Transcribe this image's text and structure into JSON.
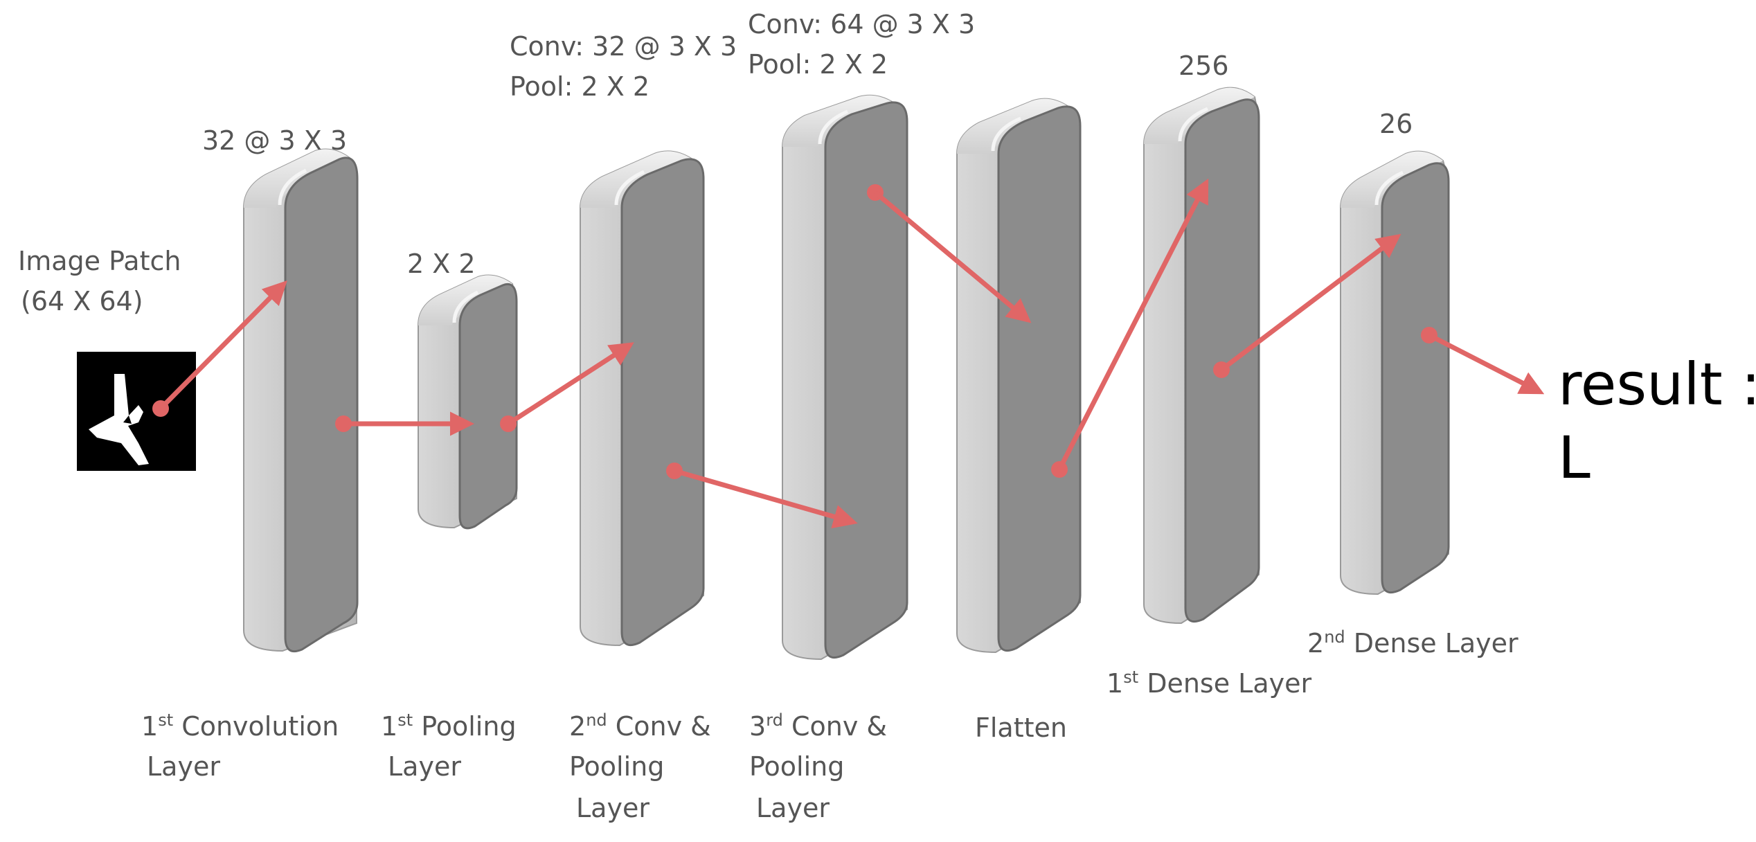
{
  "input": {
    "label_line1": "Image Patch",
    "label_line2": "(64 X 64)"
  },
  "layers": [
    {
      "id": "conv1",
      "top_label": "32 @ 3 X 3",
      "name": [
        {
          "main": "1",
          "sup": "st",
          "rest": " Convolution"
        },
        {
          "main": "Layer"
        }
      ]
    },
    {
      "id": "pool1",
      "top_label": "2 X 2",
      "name": [
        {
          "main": "1",
          "sup": "st",
          "rest": " Pooling"
        },
        {
          "main": "Layer"
        }
      ]
    },
    {
      "id": "conv2",
      "top_label_line1": "Conv: 32 @ 3 X 3",
      "top_label_line2": "Pool: 2 X 2",
      "name": [
        {
          "main": "2",
          "sup": "nd",
          "rest": " Conv &"
        },
        {
          "main": "Pooling"
        },
        {
          "main": "Layer"
        }
      ]
    },
    {
      "id": "conv3",
      "top_label_line1": "Conv: 64 @ 3 X 3",
      "top_label_line2": "Pool: 2 X 2",
      "name": [
        {
          "main": "3",
          "sup": "rd",
          "rest": " Conv &"
        },
        {
          "main": "Pooling"
        },
        {
          "main": "Layer"
        }
      ]
    },
    {
      "id": "flatten",
      "name": [
        {
          "main": "Flatten"
        }
      ]
    },
    {
      "id": "dense1",
      "top_label": "256",
      "name": [
        {
          "main": "1",
          "sup": "st",
          "rest": " Dense Layer"
        }
      ]
    },
    {
      "id": "dense2",
      "top_label": "26",
      "name": [
        {
          "main": "2",
          "sup": "nd",
          "rest": " Dense Layer"
        }
      ]
    }
  ],
  "output": {
    "line1": "result :",
    "line2": "L"
  },
  "colors": {
    "arrow": "#e06666",
    "block_face": "#8c8c8c",
    "block_side": "#c3c3c3",
    "block_edge": "#6a6a6a",
    "block_highlight": "#f5f5f5"
  },
  "icons": {
    "input_image": "hand-gesture-image",
    "arrow": "arrow-right-icon"
  }
}
